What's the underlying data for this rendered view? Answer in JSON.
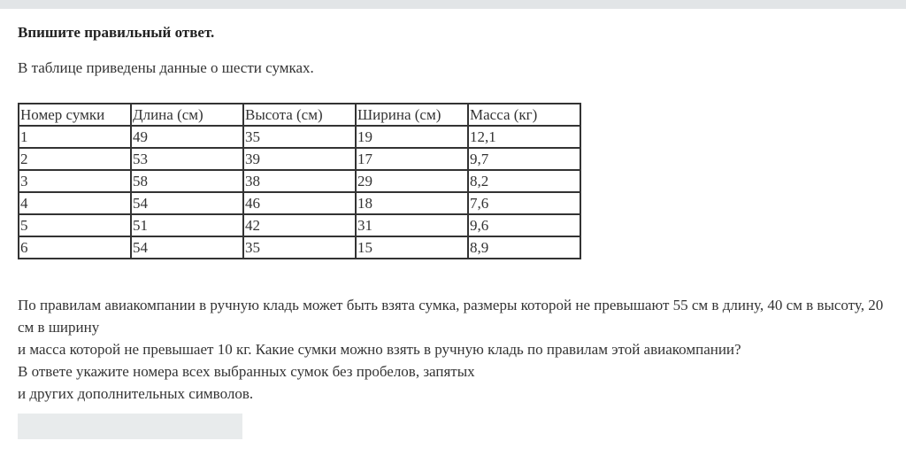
{
  "instruction": "Впишите правильный ответ.",
  "intro": "В таблице приведены данные о шести сумках.",
  "table": {
    "headers": [
      "Номер сумки",
      "Длина (см)",
      "Высота (см)",
      "Ширина (см)",
      "Масса (кг)"
    ],
    "rows": [
      [
        "1",
        "49",
        "35",
        "19",
        "12,1"
      ],
      [
        "2",
        "53",
        "39",
        "17",
        "9,7"
      ],
      [
        "3",
        "58",
        "38",
        "29",
        "8,2"
      ],
      [
        "4",
        "54",
        "46",
        "18",
        "7,6"
      ],
      [
        "5",
        "51",
        "42",
        "31",
        "9,6"
      ],
      [
        "6",
        "54",
        "35",
        "15",
        "8,9"
      ]
    ]
  },
  "question_lines": [
    "По правилам авиакомпании в ручную кладь может быть взята сумка, размеры которой не превышают 55 см в длину, 40 см в высоту, 20 см в ширину",
    "и масса которой не превышает 10 кг. Какие сумки можно взять в ручную кладь по правилам этой авиакомпании?",
    "В ответе укажите номера всех выбранных сумок без пробелов, запятых",
    "и других дополнительных символов."
  ],
  "answer": {
    "value": "",
    "placeholder": ""
  }
}
